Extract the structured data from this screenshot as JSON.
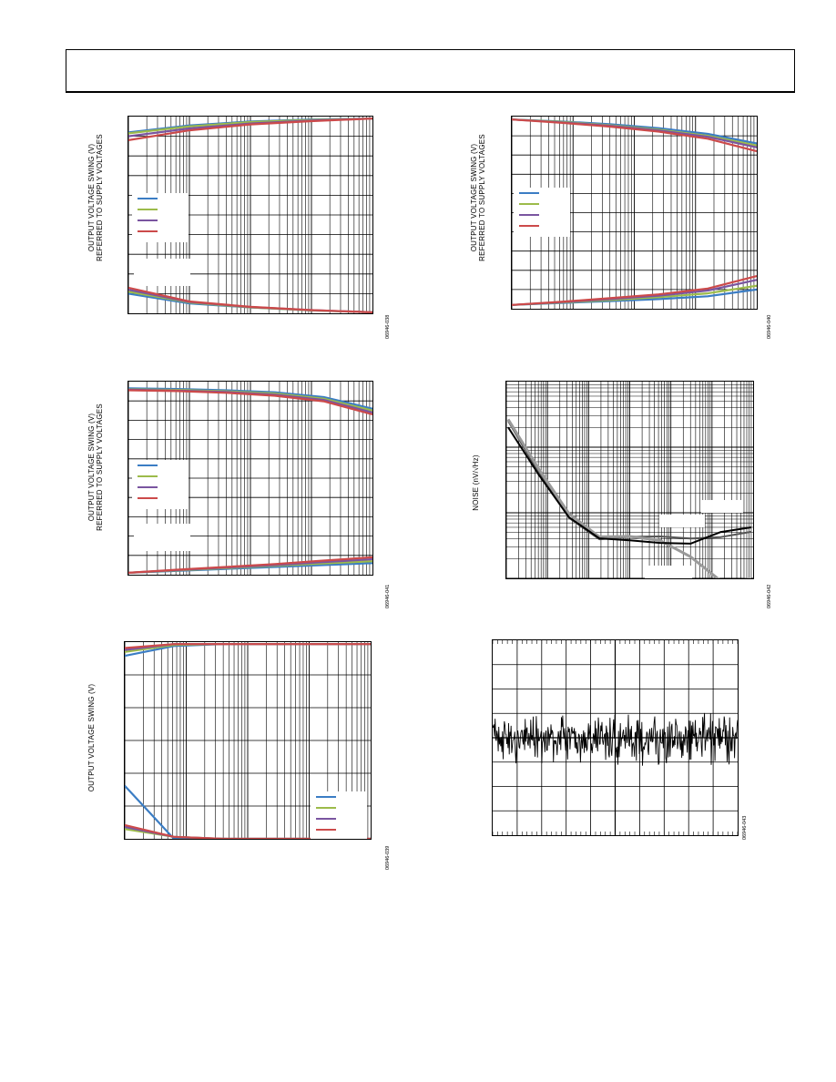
{
  "page": {
    "figure_ids": [
      "06946-038",
      "06946-040",
      "06946-041",
      "06946-042",
      "06946-039",
      "06946-043"
    ]
  },
  "colors": {
    "blue": "#3b7dc4",
    "green": "#9cbb4a",
    "purple": "#7a55a0",
    "red": "#cc4a4a",
    "gray": "#9a9a9a",
    "black": "#000000"
  },
  "chart_data": [
    {
      "id": "chart-1",
      "type": "line",
      "xscale": "log",
      "title": "",
      "ylabel": "OUTPUT VOLTAGE SWING (V)\nREFERRED TO SUPPLY VOLTAGES",
      "series": [
        {
          "color": "#3b7dc4",
          "values": [
            0.92,
            0.955,
            0.975,
            0.985,
            0.99
          ]
        },
        {
          "color": "#9cbb4a",
          "values": [
            0.915,
            0.95,
            0.972,
            0.983,
            0.99
          ]
        },
        {
          "color": "#7a55a0",
          "values": [
            0.9,
            0.94,
            0.965,
            0.98,
            0.99
          ]
        },
        {
          "color": "#cc4a4a",
          "values": [
            0.88,
            0.93,
            0.96,
            0.977,
            0.99
          ]
        },
        {
          "color": "#3b7dc4",
          "values": [
            0.1,
            0.05,
            0.03,
            0.015,
            0.005
          ]
        },
        {
          "color": "#9cbb4a",
          "values": [
            0.11,
            0.055,
            0.03,
            0.015,
            0.005
          ]
        },
        {
          "color": "#7a55a0",
          "values": [
            0.12,
            0.058,
            0.032,
            0.016,
            0.005
          ]
        },
        {
          "color": "#cc4a4a",
          "values": [
            0.13,
            0.06,
            0.033,
            0.016,
            0.005
          ]
        }
      ]
    },
    {
      "id": "chart-2",
      "type": "line",
      "xscale": "log",
      "title": "",
      "ylabel": "OUTPUT VOLTAGE SWING (V)\nREFERRED TO SUPPLY VOLTAGES",
      "series": [
        {
          "color": "#3b7dc4",
          "values": [
            0.985,
            0.975,
            0.96,
            0.94,
            0.91,
            0.86
          ]
        },
        {
          "color": "#9cbb4a",
          "values": [
            0.985,
            0.973,
            0.955,
            0.932,
            0.9,
            0.85
          ]
        },
        {
          "color": "#7a55a0",
          "values": [
            0.985,
            0.97,
            0.952,
            0.928,
            0.895,
            0.84
          ]
        },
        {
          "color": "#cc4a4a",
          "values": [
            0.985,
            0.968,
            0.948,
            0.922,
            0.885,
            0.82
          ]
        },
        {
          "color": "#3b7dc4",
          "values": [
            0.02,
            0.03,
            0.04,
            0.05,
            0.065,
            0.1
          ]
        },
        {
          "color": "#9cbb4a",
          "values": [
            0.02,
            0.032,
            0.045,
            0.06,
            0.08,
            0.12
          ]
        },
        {
          "color": "#7a55a0",
          "values": [
            0.02,
            0.034,
            0.05,
            0.068,
            0.095,
            0.15
          ]
        },
        {
          "color": "#cc4a4a",
          "values": [
            0.02,
            0.036,
            0.055,
            0.075,
            0.105,
            0.17
          ]
        }
      ]
    },
    {
      "id": "chart-3",
      "type": "line",
      "xscale": "log",
      "title": "",
      "ylabel": "OUTPUT VOLTAGE SWING (V)\nREFERRED TO SUPPLY VOLTAGES",
      "series": [
        {
          "color": "#3b7dc4",
          "values": [
            0.965,
            0.962,
            0.955,
            0.945,
            0.92,
            0.86
          ]
        },
        {
          "color": "#9cbb4a",
          "values": [
            0.96,
            0.957,
            0.95,
            0.938,
            0.912,
            0.85
          ]
        },
        {
          "color": "#7a55a0",
          "values": [
            0.958,
            0.954,
            0.946,
            0.932,
            0.905,
            0.84
          ]
        },
        {
          "color": "#cc4a4a",
          "values": [
            0.955,
            0.951,
            0.942,
            0.927,
            0.898,
            0.83
          ]
        },
        {
          "color": "#3b7dc4",
          "values": [
            0.01,
            0.02,
            0.03,
            0.04,
            0.05,
            0.06
          ]
        },
        {
          "color": "#9cbb4a",
          "values": [
            0.01,
            0.022,
            0.034,
            0.046,
            0.058,
            0.07
          ]
        },
        {
          "color": "#7a55a0",
          "values": [
            0.01,
            0.024,
            0.037,
            0.05,
            0.065,
            0.08
          ]
        },
        {
          "color": "#cc4a4a",
          "values": [
            0.01,
            0.026,
            0.04,
            0.055,
            0.073,
            0.09
          ]
        }
      ]
    },
    {
      "id": "chart-4",
      "type": "line",
      "xscale": "log",
      "yscale": "log",
      "title": "",
      "ylabel": "NOISE (nV/√Hz)",
      "series": [
        {
          "color": "#555555",
          "values": [
            0.8,
            0.55,
            0.32,
            0.2,
            0.2,
            0.2,
            0.2,
            0.22,
            0.25
          ]
        },
        {
          "color": "#9a9a9a",
          "values": [
            0.82,
            0.57,
            0.33,
            0.2,
            0.2,
            0.19,
            0.12,
            0.0,
            0.0
          ]
        },
        {
          "color": "#000000",
          "values": [
            0.78,
            0.53,
            0.3,
            0.19,
            0.19,
            0.19,
            0.19,
            0.24,
            0.25
          ]
        }
      ]
    },
    {
      "id": "chart-5",
      "type": "line",
      "xscale": "log",
      "title": "",
      "ylabel": "OUTPUT VOLTAGE SWING (V)",
      "series": [
        {
          "color": "#3b7dc4",
          "values": [
            0.93,
            0.98,
            0.99,
            0.99,
            0.99,
            0.99
          ]
        },
        {
          "color": "#9cbb4a",
          "values": [
            0.95,
            0.985,
            0.99,
            0.99,
            0.99,
            0.99
          ]
        },
        {
          "color": "#7a55a0",
          "values": [
            0.96,
            0.99,
            0.99,
            0.99,
            0.99,
            0.99
          ]
        },
        {
          "color": "#cc4a4a",
          "values": [
            0.97,
            0.99,
            0.99,
            0.99,
            0.99,
            0.99
          ]
        },
        {
          "color": "#3b7dc4",
          "values": [
            0.27,
            0.0,
            0.0,
            0.0,
            0.0,
            0.0
          ]
        },
        {
          "color": "#9cbb4a",
          "values": [
            0.05,
            0.01,
            0.0,
            0.0,
            0.0,
            0.0
          ]
        },
        {
          "color": "#7a55a0",
          "values": [
            0.06,
            0.01,
            0.0,
            0.0,
            0.0,
            0.0
          ]
        },
        {
          "color": "#cc4a4a",
          "values": [
            0.07,
            0.01,
            0.0,
            0.0,
            0.0,
            0.0
          ]
        }
      ]
    },
    {
      "id": "chart-6",
      "type": "line",
      "title": "",
      "ylabel": "",
      "series": [
        {
          "color": "#000000",
          "values": []
        }
      ]
    }
  ]
}
